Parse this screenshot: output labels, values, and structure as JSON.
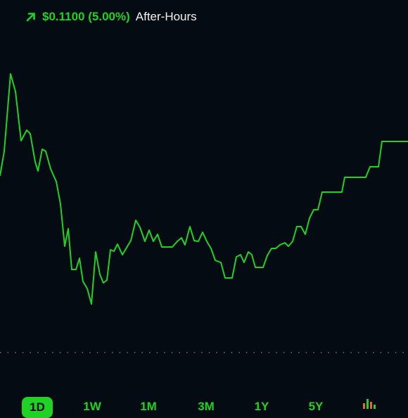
{
  "header": {
    "change": "$0.1100 (5.00%)",
    "session": "After-Hours"
  },
  "tabs": [
    "1D",
    "1W",
    "1M",
    "3M",
    "1Y",
    "5Y"
  ]
}
